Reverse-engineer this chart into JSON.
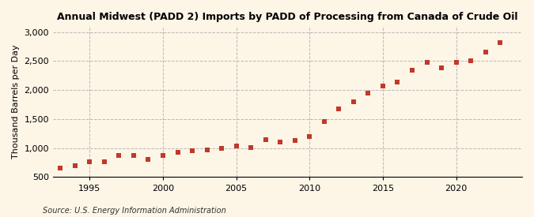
{
  "title": "Annual Midwest (PADD 2) Imports by PADD of Processing from Canada of Crude Oil",
  "ylabel": "Thousand Barrels per Day",
  "source": "Source: U.S. Energy Information Administration",
  "background_color": "#fdf5e6",
  "marker_color": "#c0392b",
  "years": [
    1993,
    1994,
    1995,
    1996,
    1997,
    1998,
    1999,
    2000,
    2001,
    2002,
    2003,
    2004,
    2005,
    2006,
    2007,
    2008,
    2009,
    2010,
    2011,
    2012,
    2013,
    2014,
    2015,
    2016,
    2017,
    2018,
    2019,
    2020,
    2021,
    2022,
    2023
  ],
  "values": [
    650,
    700,
    760,
    760,
    870,
    870,
    800,
    880,
    930,
    950,
    970,
    1000,
    1040,
    1010,
    1140,
    1110,
    1130,
    1200,
    1460,
    1670,
    1800,
    1950,
    2070,
    2140,
    2340,
    2480,
    2380,
    2480,
    2510,
    2660,
    2820
  ],
  "ylim": [
    500,
    3100
  ],
  "yticks": [
    500,
    1000,
    1500,
    2000,
    2500,
    3000
  ],
  "ytick_labels": [
    "500",
    "1,000",
    "1,500",
    "2,000",
    "2,500",
    "3,000"
  ],
  "xlim": [
    1992.5,
    2024.5
  ],
  "xticks": [
    1995,
    2000,
    2005,
    2010,
    2015,
    2020
  ]
}
